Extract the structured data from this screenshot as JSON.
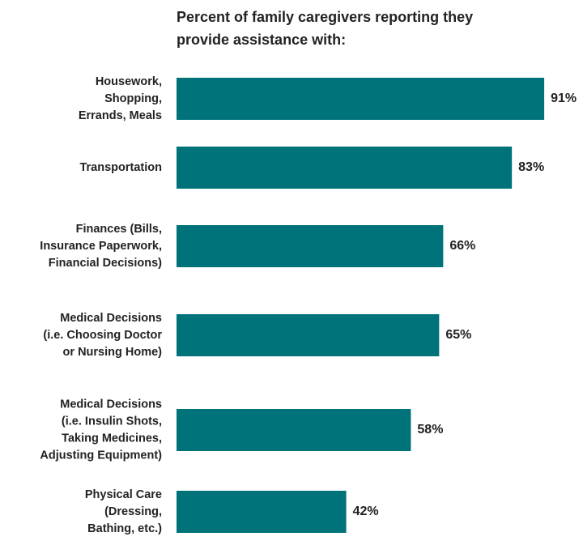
{
  "chart_data": {
    "type": "bar",
    "orientation": "horizontal",
    "title": "Percent of family caregivers reporting they\nprovide assistance with:",
    "categories": [
      "Housework,\nShopping,\nErrands, Meals",
      "Transportation",
      "Finances (Bills,\nInsurance Paperwork,\nFinancial Decisions)",
      "Medical Decisions\n(i.e. Choosing Doctor\nor Nursing Home)",
      "Medical Decisions\n(i.e. Insulin Shots,\nTaking Medicines,\nAdjusting Equipment)",
      "Physical Care\n(Dressing,\nBathing, etc.)"
    ],
    "values": [
      91,
      83,
      66,
      65,
      58,
      42
    ],
    "value_labels": [
      "91%",
      "83%",
      "66%",
      "65%",
      "58%",
      "42%"
    ],
    "color": "#00737a",
    "xlim": [
      0,
      100
    ]
  }
}
